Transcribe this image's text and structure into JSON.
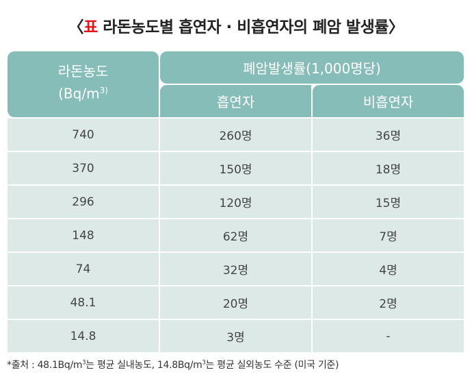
{
  "title": {
    "prefix": "〈",
    "label": "표",
    "text": " 라돈농도별 흡연자 · 비흡연자의 폐암 발생률",
    "suffix": "〉"
  },
  "header": {
    "col1_line1": "라돈농도",
    "col1_line2": "(Bq/m",
    "col1_sup": "3)",
    "group": "폐암발생률(1,000명당)",
    "col2": "흡연자",
    "col3": "비흡연자"
  },
  "rows": [
    [
      "740",
      "260명",
      "36명"
    ],
    [
      "370",
      "150명",
      "18명"
    ],
    [
      "296",
      "120명",
      "15명"
    ],
    [
      "148",
      "62명",
      "7명"
    ],
    [
      "74",
      "32명",
      "4명"
    ],
    [
      "48.1",
      "20명",
      "2명"
    ],
    [
      "14.8",
      "3명",
      "-"
    ]
  ],
  "note": {
    "a": "*출처 : 48.1Bq/m",
    "sup1": "3",
    "b": "는 평균 실내농도, 14.8Bq/m",
    "sup2": "3",
    "c": "는 평균 실외농도 수준 (미국 기준)"
  },
  "colors": {
    "header": "#86bdb8",
    "row": "#dde9e7",
    "accent": "#e4141b"
  }
}
